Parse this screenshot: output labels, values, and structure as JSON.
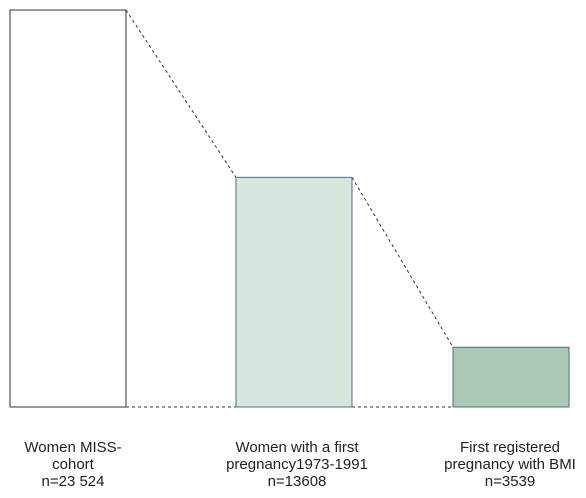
{
  "chart_data": {
    "type": "bar",
    "title": "",
    "xlabel": "",
    "ylabel": "",
    "ylim": [
      0,
      23524
    ],
    "grid": false,
    "categories": [
      {
        "lines": [
          "Women MISS-",
          "cohort",
          "n=23 524"
        ],
        "value": 23524,
        "fill": "#ffffff",
        "stroke": "#333333"
      },
      {
        "lines": [
          "Women with a first",
          "pregnancy1973-1991",
          "n=13608"
        ],
        "value": 13608,
        "fill": "#d9e6de",
        "stroke": "#4f6b8a"
      },
      {
        "lines": [
          "First registered",
          "pregnancy with BMI",
          "n=3539"
        ],
        "value": 3539,
        "fill": "#a9c8b6",
        "stroke": "#4f6b8a"
      }
    ],
    "connectors": "dashed"
  }
}
